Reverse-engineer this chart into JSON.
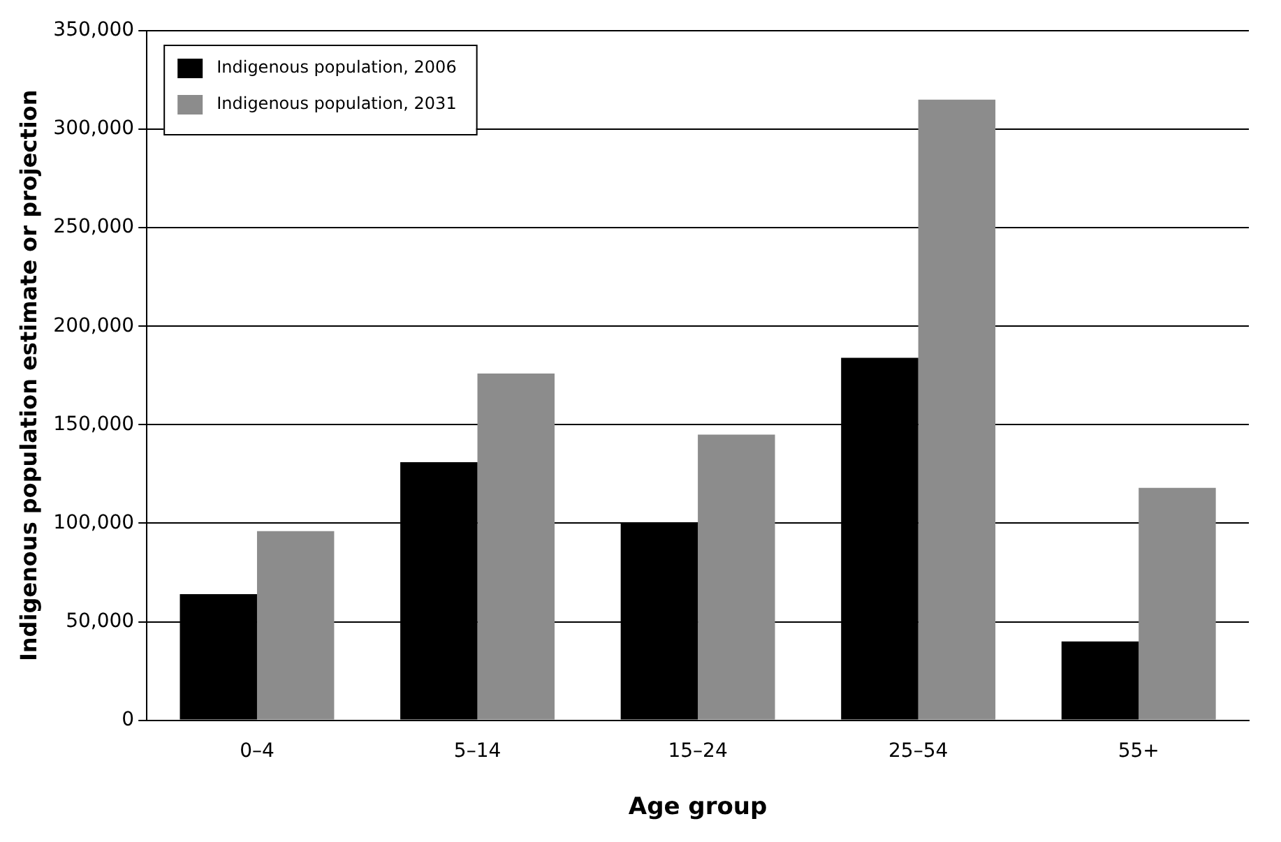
{
  "chart_data": {
    "type": "bar",
    "xlabel": "Age group",
    "ylabel": "Indigenous population estimate or projection",
    "categories": [
      "0–4",
      "5–14",
      "15–24",
      "25–54",
      "55+"
    ],
    "series": [
      {
        "name": "Indigenous population, 2006",
        "color": "#000000",
        "values": [
          64000,
          131000,
          100000,
          184000,
          40000
        ]
      },
      {
        "name": "Indigenous population, 2031",
        "color": "#8c8c8c",
        "values": [
          96000,
          176000,
          145000,
          315000,
          118000
        ]
      }
    ],
    "ylim": [
      0,
      350000
    ],
    "yticks": [
      {
        "value": 0,
        "label": "0"
      },
      {
        "value": 50000,
        "label": "50,000"
      },
      {
        "value": 100000,
        "label": "100,000"
      },
      {
        "value": 150000,
        "label": "150,000"
      },
      {
        "value": 200000,
        "label": "200,000"
      },
      {
        "value": 250000,
        "label": "250,000"
      },
      {
        "value": 300000,
        "label": "300,000"
      },
      {
        "value": 350000,
        "label": "350,000"
      }
    ],
    "grid": "y",
    "legend": "top left"
  }
}
